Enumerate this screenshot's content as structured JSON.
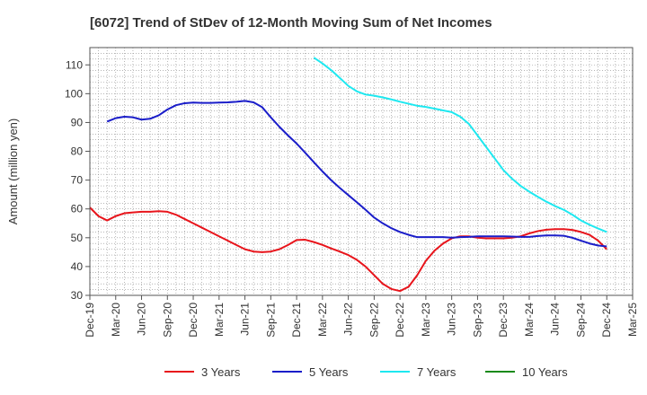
{
  "chart_data": {
    "type": "line",
    "title": "[6072]  Trend of StDev of 12-Month Moving Sum of Net Incomes",
    "xlabel": "",
    "ylabel": "Amount (million yen)",
    "ylim": [
      30,
      116
    ],
    "yticks": [
      30,
      40,
      50,
      60,
      70,
      80,
      90,
      100,
      110
    ],
    "xlim": [
      "Dec-19",
      "Mar-25"
    ],
    "xticks": [
      "Dec-19",
      "Mar-20",
      "Jun-20",
      "Sep-20",
      "Dec-20",
      "Mar-21",
      "Jun-21",
      "Sep-21",
      "Dec-21",
      "Mar-22",
      "Jun-22",
      "Sep-22",
      "Dec-22",
      "Mar-23",
      "Jun-23",
      "Sep-23",
      "Dec-23",
      "Mar-24",
      "Jun-24",
      "Sep-24",
      "Dec-24",
      "Mar-25"
    ],
    "grid": true,
    "legend_position": "bottom",
    "series": [
      {
        "name": "3 Years",
        "color": "#e8141b",
        "values": [
          [
            "Dec-19",
            60.5
          ],
          [
            "Jan-20",
            57.5
          ],
          [
            "Feb-20",
            56.0
          ],
          [
            "Mar-20",
            57.5
          ],
          [
            "Apr-20",
            58.5
          ],
          [
            "May-20",
            58.8
          ],
          [
            "Jun-20",
            59.0
          ],
          [
            "Jul-20",
            59.0
          ],
          [
            "Aug-20",
            59.2
          ],
          [
            "Sep-20",
            59.0
          ],
          [
            "Oct-20",
            58.0
          ],
          [
            "Nov-20",
            56.5
          ],
          [
            "Dec-20",
            55.0
          ],
          [
            "Jan-21",
            53.5
          ],
          [
            "Feb-21",
            52.0
          ],
          [
            "Mar-21",
            50.5
          ],
          [
            "Apr-21",
            49.0
          ],
          [
            "May-21",
            47.5
          ],
          [
            "Jun-21",
            46.0
          ],
          [
            "Jul-21",
            45.2
          ],
          [
            "Aug-21",
            45.0
          ],
          [
            "Sep-21",
            45.2
          ],
          [
            "Oct-21",
            46.0
          ],
          [
            "Nov-21",
            47.5
          ],
          [
            "Dec-21",
            49.2
          ],
          [
            "Jan-22",
            49.3
          ],
          [
            "Feb-22",
            48.5
          ],
          [
            "Mar-22",
            47.5
          ],
          [
            "Apr-22",
            46.3
          ],
          [
            "May-22",
            45.2
          ],
          [
            "Jun-22",
            44.0
          ],
          [
            "Jul-22",
            42.3
          ],
          [
            "Aug-22",
            40.0
          ],
          [
            "Sep-22",
            37.0
          ],
          [
            "Oct-22",
            34.0
          ],
          [
            "Nov-22",
            32.2
          ],
          [
            "Dec-22",
            31.5
          ],
          [
            "Jan-23",
            33.0
          ],
          [
            "Feb-23",
            37.0
          ],
          [
            "Mar-23",
            42.0
          ],
          [
            "Apr-23",
            45.5
          ],
          [
            "May-23",
            48.0
          ],
          [
            "Jun-23",
            49.8
          ],
          [
            "Jul-23",
            50.5
          ],
          [
            "Aug-23",
            50.5
          ],
          [
            "Sep-23",
            50.0
          ],
          [
            "Oct-23",
            49.8
          ],
          [
            "Nov-23",
            49.8
          ],
          [
            "Dec-23",
            49.8
          ],
          [
            "Jan-24",
            50.0
          ],
          [
            "Feb-24",
            50.5
          ],
          [
            "Mar-24",
            51.5
          ],
          [
            "Apr-24",
            52.3
          ],
          [
            "May-24",
            52.8
          ],
          [
            "Jun-24",
            53.0
          ],
          [
            "Jul-24",
            53.0
          ],
          [
            "Aug-24",
            52.7
          ],
          [
            "Sep-24",
            52.0
          ],
          [
            "Oct-24",
            51.0
          ],
          [
            "Nov-24",
            49.0
          ],
          [
            "Dec-24",
            46.0
          ]
        ]
      },
      {
        "name": "5 Years",
        "color": "#1a1dc9",
        "values": [
          [
            "Feb-20",
            90.3
          ],
          [
            "Mar-20",
            91.5
          ],
          [
            "Apr-20",
            92.0
          ],
          [
            "May-20",
            91.8
          ],
          [
            "Jun-20",
            91.0
          ],
          [
            "Jul-20",
            91.3
          ],
          [
            "Aug-20",
            92.5
          ],
          [
            "Sep-20",
            94.5
          ],
          [
            "Oct-20",
            96.0
          ],
          [
            "Nov-20",
            96.7
          ],
          [
            "Dec-20",
            96.9
          ],
          [
            "Jan-21",
            96.8
          ],
          [
            "Feb-21",
            96.8
          ],
          [
            "Mar-21",
            96.9
          ],
          [
            "Apr-21",
            97.0
          ],
          [
            "May-21",
            97.2
          ],
          [
            "Jun-21",
            97.5
          ],
          [
            "Jul-21",
            97.0
          ],
          [
            "Aug-21",
            95.3
          ],
          [
            "Sep-21",
            91.8
          ],
          [
            "Oct-21",
            88.5
          ],
          [
            "Nov-21",
            85.5
          ],
          [
            "Dec-21",
            82.7
          ],
          [
            "Jan-22",
            79.5
          ],
          [
            "Feb-22",
            76.2
          ],
          [
            "Mar-22",
            73.0
          ],
          [
            "Apr-22",
            70.0
          ],
          [
            "May-22",
            67.3
          ],
          [
            "Jun-22",
            64.8
          ],
          [
            "Jul-22",
            62.3
          ],
          [
            "Aug-22",
            59.7
          ],
          [
            "Sep-22",
            57.0
          ],
          [
            "Oct-22",
            55.0
          ],
          [
            "Nov-22",
            53.3
          ],
          [
            "Dec-22",
            52.0
          ],
          [
            "Jan-23",
            51.0
          ],
          [
            "Feb-23",
            50.2
          ],
          [
            "Mar-23",
            50.2
          ],
          [
            "Apr-23",
            50.2
          ],
          [
            "May-23",
            50.2
          ],
          [
            "Jun-23",
            50.0
          ],
          [
            "Jul-23",
            50.2
          ],
          [
            "Aug-23",
            50.3
          ],
          [
            "Sep-23",
            50.5
          ],
          [
            "Oct-23",
            50.5
          ],
          [
            "Nov-23",
            50.5
          ],
          [
            "Dec-23",
            50.5
          ],
          [
            "Jan-24",
            50.4
          ],
          [
            "Feb-24",
            50.3
          ],
          [
            "Mar-24",
            50.3
          ],
          [
            "Apr-24",
            50.6
          ],
          [
            "May-24",
            50.8
          ],
          [
            "Jun-24",
            50.8
          ],
          [
            "Jul-24",
            50.7
          ],
          [
            "Aug-24",
            50.0
          ],
          [
            "Sep-24",
            49.0
          ],
          [
            "Oct-24",
            48.0
          ],
          [
            "Nov-24",
            47.3
          ],
          [
            "Dec-24",
            47.0
          ]
        ]
      },
      {
        "name": "7 Years",
        "color": "#1ee8f0",
        "values": [
          [
            "Feb-22",
            112.5
          ],
          [
            "Mar-22",
            110.5
          ],
          [
            "Apr-22",
            108.2
          ],
          [
            "May-22",
            105.5
          ],
          [
            "Jun-22",
            102.7
          ],
          [
            "Jul-22",
            100.8
          ],
          [
            "Aug-22",
            99.7
          ],
          [
            "Sep-22",
            99.3
          ],
          [
            "Oct-22",
            98.7
          ],
          [
            "Nov-22",
            98.0
          ],
          [
            "Dec-22",
            97.2
          ],
          [
            "Jan-23",
            96.5
          ],
          [
            "Feb-23",
            95.8
          ],
          [
            "Mar-23",
            95.4
          ],
          [
            "Apr-23",
            94.8
          ],
          [
            "May-23",
            94.2
          ],
          [
            "Jun-23",
            93.6
          ],
          [
            "Jul-23",
            92.0
          ],
          [
            "Aug-23",
            89.5
          ],
          [
            "Sep-23",
            85.5
          ],
          [
            "Oct-23",
            81.5
          ],
          [
            "Nov-23",
            77.5
          ],
          [
            "Dec-23",
            73.5
          ],
          [
            "Jan-24",
            70.5
          ],
          [
            "Feb-24",
            68.0
          ],
          [
            "Mar-24",
            66.0
          ],
          [
            "Apr-24",
            64.2
          ],
          [
            "May-24",
            62.5
          ],
          [
            "Jun-24",
            61.0
          ],
          [
            "Jul-24",
            59.7
          ],
          [
            "Aug-24",
            58.0
          ],
          [
            "Sep-24",
            56.0
          ],
          [
            "Oct-24",
            54.5
          ],
          [
            "Nov-24",
            53.2
          ],
          [
            "Dec-24",
            52.0
          ]
        ]
      },
      {
        "name": "10 Years",
        "color": "#1a8a1a",
        "values": []
      }
    ]
  }
}
